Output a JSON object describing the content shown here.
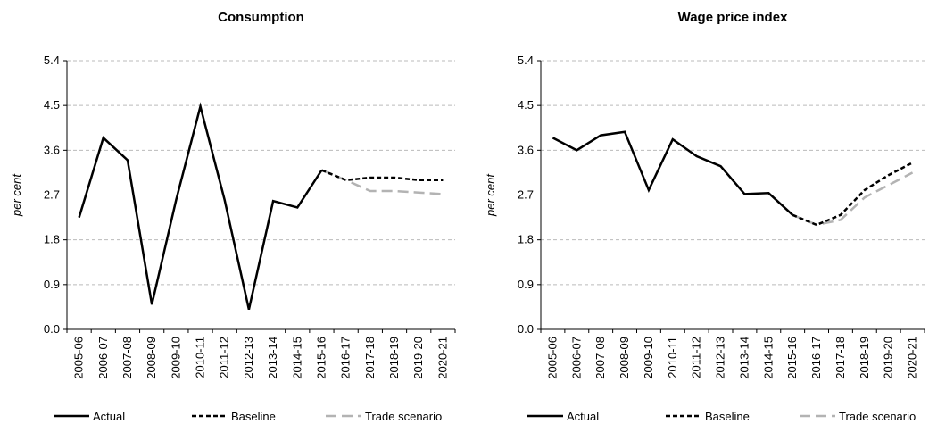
{
  "chart_data": [
    {
      "type": "line",
      "title": "Consumption",
      "ylabel": "per cent",
      "categories": [
        "2005-06",
        "2006-07",
        "2007-08",
        "2008-09",
        "2009-10",
        "2010-11",
        "2011-12",
        "2012-13",
        "2013-14",
        "2014-15",
        "2015-16",
        "2016-17",
        "2017-18",
        "2018-19",
        "2019-20",
        "2020-21"
      ],
      "series": [
        {
          "name": "Actual",
          "color": "#000000",
          "line_style": "solid",
          "values": [
            2.25,
            3.85,
            3.4,
            0.5,
            2.6,
            4.48,
            2.6,
            0.4,
            2.58,
            2.45,
            3.2,
            null,
            null,
            null,
            null,
            null
          ]
        },
        {
          "name": "Baseline",
          "color": "#000000",
          "line_style": "dashed",
          "values": [
            null,
            null,
            null,
            null,
            null,
            null,
            null,
            null,
            null,
            null,
            3.2,
            3.0,
            3.05,
            3.05,
            3.0,
            3.0
          ]
        },
        {
          "name": "Trade scenario",
          "color": "#b3b3b3",
          "line_style": "long-dash",
          "values": [
            null,
            null,
            null,
            null,
            null,
            null,
            null,
            null,
            null,
            null,
            3.2,
            3.0,
            2.78,
            2.78,
            2.75,
            2.72
          ]
        }
      ],
      "ylim": [
        0,
        5.4
      ],
      "yticks": [
        {
          "value": 0,
          "label": "0.0"
        },
        0.9,
        1.8,
        2.7,
        3.6,
        4.5,
        5.4
      ],
      "grid": true
    },
    {
      "type": "line",
      "title": "Wage price index",
      "ylabel": "per cent",
      "categories": [
        "2005-06",
        "2006-07",
        "2007-08",
        "2008-09",
        "2009-10",
        "2010-11",
        "2011-12",
        "2012-13",
        "2013-14",
        "2014-15",
        "2015-16",
        "2016-17",
        "2017-18",
        "2018-19",
        "2019-20",
        "2020-21"
      ],
      "series": [
        {
          "name": "Actual",
          "color": "#000000",
          "line_style": "solid",
          "values": [
            3.85,
            3.6,
            3.9,
            3.97,
            2.8,
            3.82,
            3.48,
            3.28,
            2.72,
            2.74,
            2.3,
            null,
            null,
            null,
            null,
            null
          ]
        },
        {
          "name": "Baseline",
          "color": "#000000",
          "line_style": "dashed",
          "values": [
            null,
            null,
            null,
            null,
            null,
            null,
            null,
            null,
            null,
            null,
            2.3,
            2.1,
            2.3,
            2.8,
            3.1,
            3.35
          ]
        },
        {
          "name": "Trade scenario",
          "color": "#b3b3b3",
          "line_style": "long-dash",
          "values": [
            null,
            null,
            null,
            null,
            null,
            null,
            null,
            null,
            null,
            null,
            2.3,
            2.1,
            2.2,
            2.65,
            2.9,
            3.15
          ]
        }
      ],
      "ylim": [
        0,
        5.4
      ],
      "yticks": [
        {
          "value": 0,
          "label": "0.0"
        },
        0.9,
        1.8,
        2.7,
        3.6,
        4.5,
        5.4
      ],
      "grid": true
    }
  ]
}
